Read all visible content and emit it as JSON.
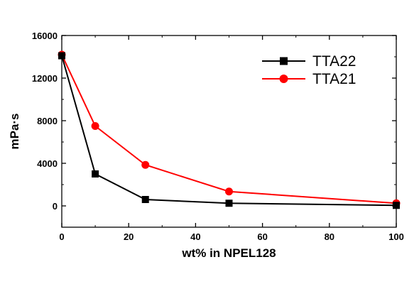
{
  "chart_data": {
    "type": "line",
    "title": "",
    "xlabel": "wt% in NPEL128",
    "ylabel": "mPa·s",
    "xlim": [
      0,
      100
    ],
    "ylim": [
      -2000,
      16000
    ],
    "x_ticks": [
      0,
      20,
      40,
      60,
      80,
      100
    ],
    "y_ticks": [
      0,
      4000,
      8000,
      12000,
      16000
    ],
    "grid": false,
    "legend_position": "top-right",
    "series": [
      {
        "name": "TTA22",
        "color": "#000000",
        "marker": "square",
        "x": [
          0,
          10,
          25,
          50,
          100
        ],
        "y": [
          14100,
          3000,
          600,
          250,
          50
        ]
      },
      {
        "name": "TTA21",
        "color": "#ff0000",
        "marker": "circle",
        "x": [
          0,
          10,
          25,
          50,
          100
        ],
        "y": [
          14200,
          7500,
          3850,
          1350,
          250
        ]
      }
    ]
  }
}
